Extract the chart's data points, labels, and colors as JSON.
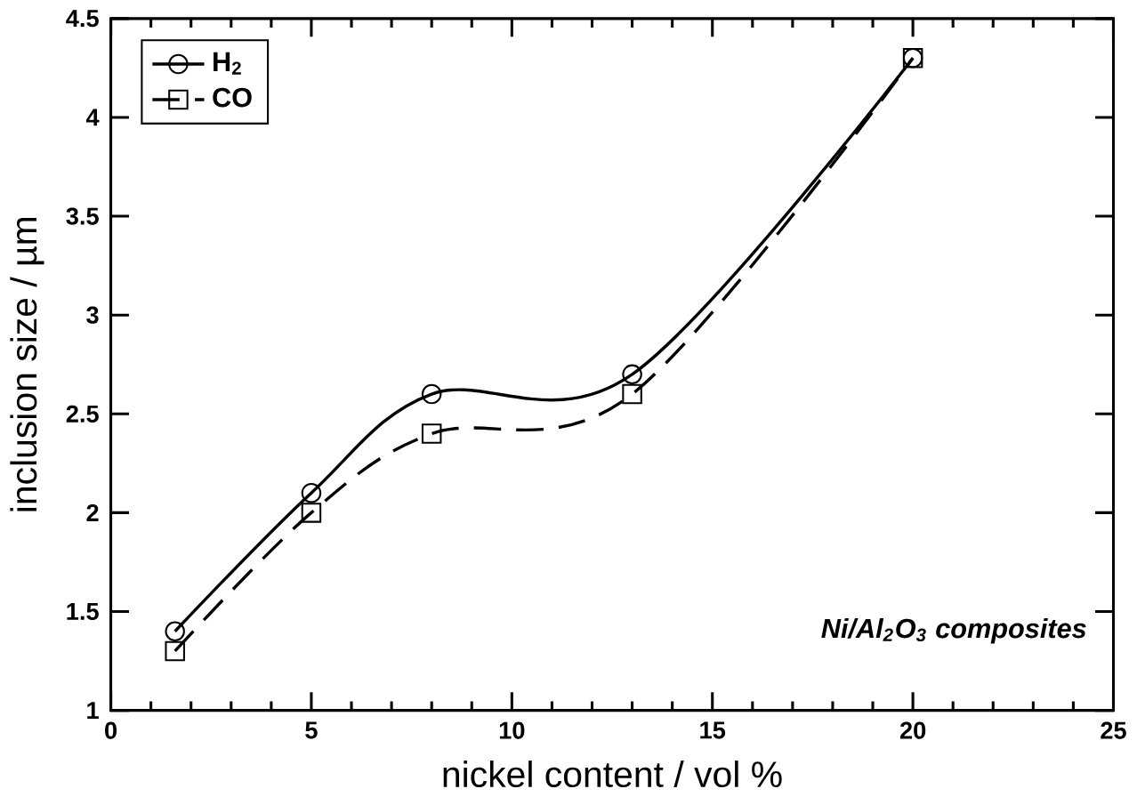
{
  "chart_data": {
    "type": "line",
    "xlabel": "nickel content / vol %",
    "ylabel": "inclusion size / µm",
    "xlim": [
      0,
      25
    ],
    "xticks": [
      0,
      5,
      10,
      15,
      20,
      25
    ],
    "ylim": [
      1,
      4.5
    ],
    "yticks": [
      1,
      1.5,
      2,
      2.5,
      3,
      3.5,
      4,
      4.5
    ],
    "x": [
      1.6,
      5,
      8,
      13,
      20
    ],
    "series": [
      {
        "name": "H$_{2}$",
        "color": "#000000",
        "marker": "circle",
        "line_style": "solid",
        "values": [
          1.4,
          2.1,
          2.6,
          2.7,
          4.3
        ]
      },
      {
        "name": "CO",
        "color": "#000000",
        "marker": "square",
        "line_style": "dashed",
        "values": [
          1.3,
          2.0,
          2.4,
          2.6,
          4.3
        ]
      }
    ],
    "legend": "top left",
    "grid": false,
    "annotations": [
      "Ni/Al$_{2}$O$_{3}$ composites"
    ]
  }
}
